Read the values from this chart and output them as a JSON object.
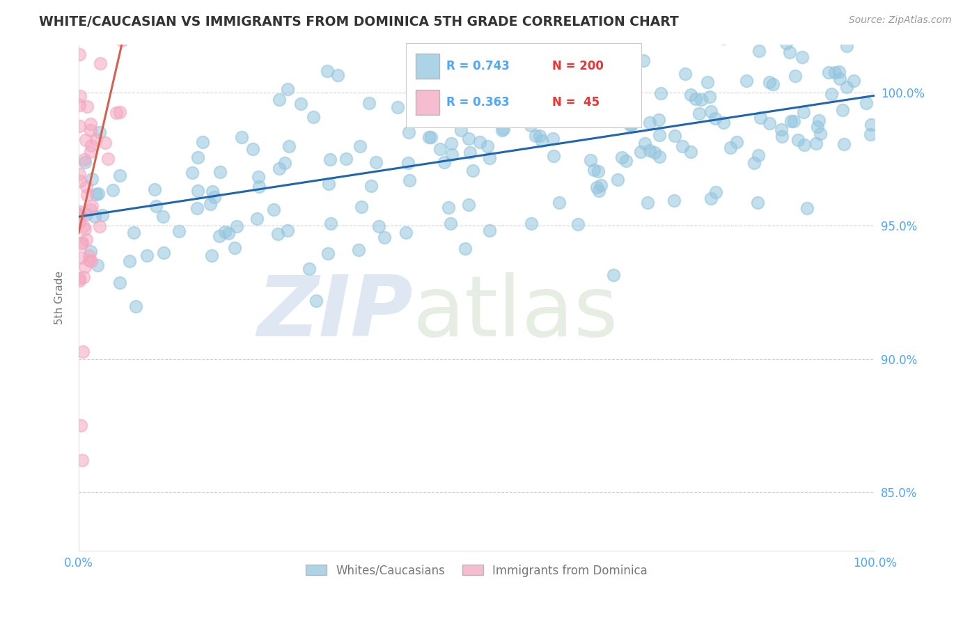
{
  "title": "WHITE/CAUCASIAN VS IMMIGRANTS FROM DOMINICA 5TH GRADE CORRELATION CHART",
  "source": "Source: ZipAtlas.com",
  "ylabel": "5th Grade",
  "xlim": [
    0.0,
    1.0
  ],
  "ylim": [
    0.828,
    1.018
  ],
  "yticks": [
    0.85,
    0.9,
    0.95,
    1.0
  ],
  "ytick_labels": [
    "85.0%",
    "90.0%",
    "95.0%",
    "100.0%"
  ],
  "xticks": [
    0.0,
    0.25,
    0.5,
    0.75,
    1.0
  ],
  "xtick_labels": [
    "0.0%",
    "",
    "",
    "",
    "100.0%"
  ],
  "blue_R": 0.743,
  "blue_N": 200,
  "pink_R": 0.363,
  "pink_N": 45,
  "blue_color": "#92c5de",
  "pink_color": "#f4a6c0",
  "blue_line_color": "#2166ac",
  "pink_line_color": "#d6604d",
  "legend_blue_label": "Whites/Caucasians",
  "legend_pink_label": "Immigrants from Dominica",
  "background_color": "#ffffff",
  "grid_color": "#cccccc",
  "title_color": "#333333",
  "axis_label_color": "#777777",
  "tick_label_color": "#4da6ff",
  "source_color": "#999999",
  "blue_trend_start_y": 0.951,
  "blue_trend_end_y": 1.001,
  "pink_trend_start_x": 0.0,
  "pink_trend_start_y": 0.955,
  "pink_trend_end_x": 0.055,
  "pink_trend_end_y": 1.005
}
